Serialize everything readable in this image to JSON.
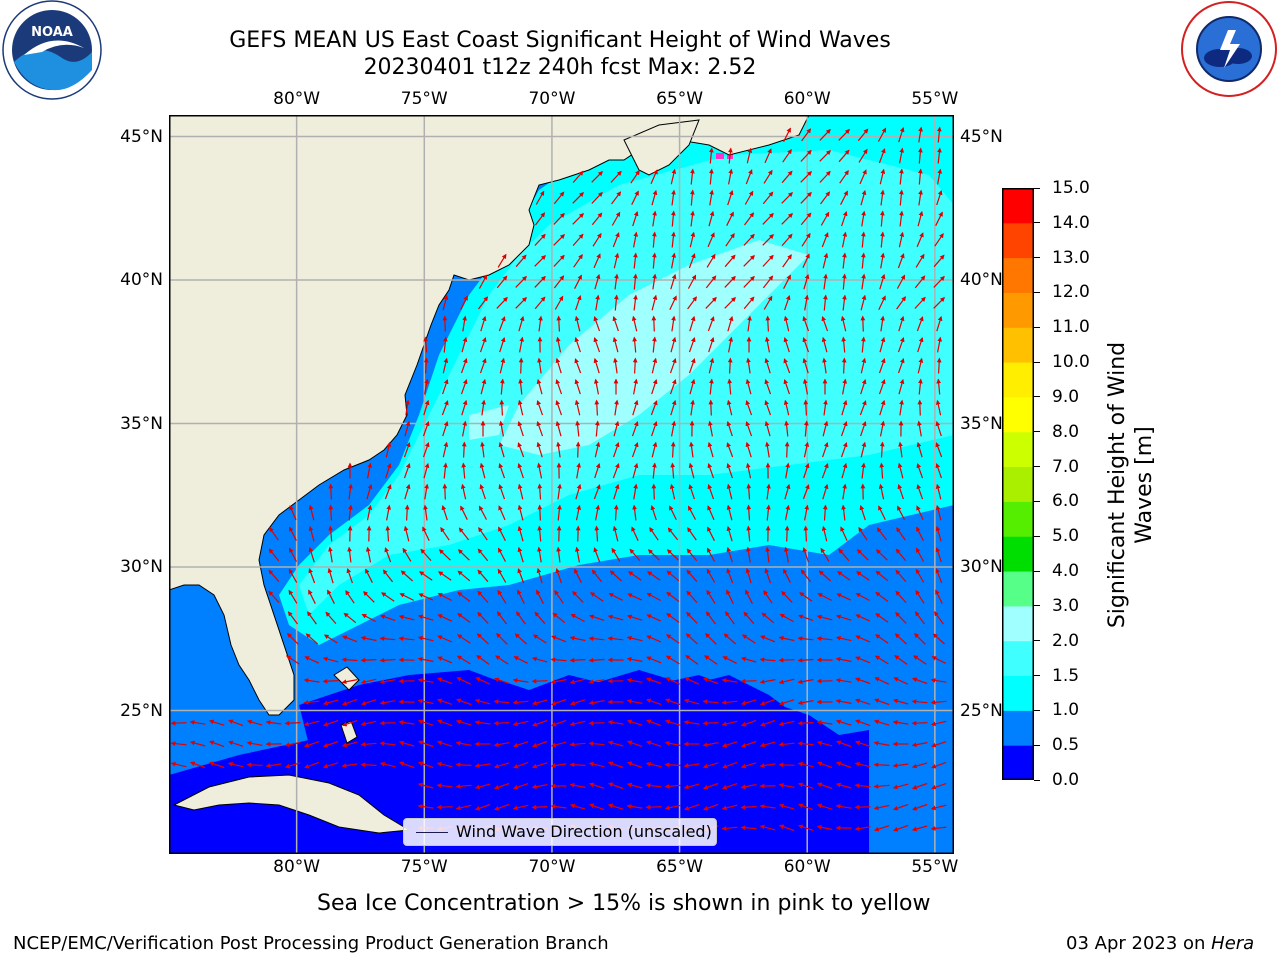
{
  "header": {
    "title_line1": "GEFS MEAN US East Coast Significant Height of Wind Waves",
    "title_line2": "20230401 t12z 240h fcst   Max: 2.52"
  },
  "logos": {
    "left": {
      "name": "NOAA",
      "ring_text": "NATIONAL OCEANIC AND ATMOSPHERIC ADMINISTRATION · U.S. DEPARTMENT OF COMMERCE"
    },
    "right": {
      "name": "NATIONAL WEATHER SERVICE"
    }
  },
  "map": {
    "lon_labels": [
      "80°W",
      "75°W",
      "70°W",
      "65°W",
      "60°W",
      "55°W"
    ],
    "lon_values": [
      -80,
      -75,
      -70,
      -65,
      -60,
      -55
    ],
    "lat_labels": [
      "45°N",
      "40°N",
      "35°N",
      "30°N",
      "25°N"
    ],
    "lat_values": [
      45,
      40,
      35,
      30,
      25
    ],
    "extent": {
      "lon_min": -85,
      "lon_max": -54.25,
      "lat_min": 20,
      "lat_max": 45.75
    },
    "colors": {
      "land": "#efeedc",
      "coast": "#000000",
      "grid": "#b0b0b0",
      "arrow": "#e00000"
    },
    "legend_label": "Wind Wave Direction (unscaled)",
    "note": "Sea Ice Concentration > 15% is shown in pink to yellow"
  },
  "colorbar": {
    "title": "Significant Height of Wind Waves [m]",
    "levels": [
      "0.0",
      "0.5",
      "1.0",
      "1.5",
      "2.0",
      "3.0",
      "4.0",
      "5.0",
      "6.0",
      "7.0",
      "8.0",
      "9.0",
      "10.0",
      "11.0",
      "12.0",
      "13.0",
      "14.0",
      "15.0"
    ],
    "colors": [
      "#0000ff",
      "#0080ff",
      "#00ffff",
      "#40ffff",
      "#a0ffff",
      "#55ff88",
      "#00dd00",
      "#55ee00",
      "#aaee00",
      "#ccff00",
      "#ffff00",
      "#ffee00",
      "#ffc000",
      "#ff9900",
      "#ff7700",
      "#ff4400",
      "#ff0000"
    ]
  },
  "footer": {
    "left": "NCEP/EMC/Verification Post Processing Product Generation Branch",
    "right_date": "03 Apr 2023 on ",
    "right_host": "Hera"
  }
}
